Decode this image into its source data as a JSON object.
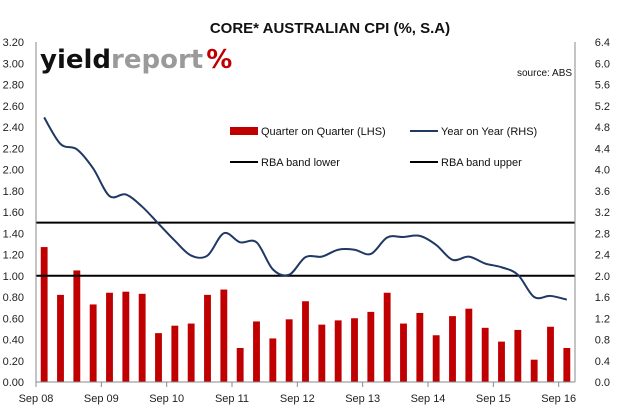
{
  "chart_data": {
    "type": "bar",
    "title": "CORE* AUSTRALIAN CPI (%, S.A)",
    "source": "source: ABS",
    "logo": {
      "text_dark": "yield",
      "text_light": "report",
      "symbol": "%"
    },
    "x_tick_labels": [
      "Sep 08",
      "Sep 09",
      "Sep 10",
      "Sep 11",
      "Sep 12",
      "Sep 13",
      "Sep 14",
      "Sep 15",
      "Sep 16"
    ],
    "left_axis": {
      "ylim": [
        0,
        3.2
      ],
      "step": 0.2,
      "tick_labels": [
        "0.00",
        "0.20",
        "0.40",
        "0.60",
        "0.80",
        "1.00",
        "1.20",
        "1.40",
        "1.60",
        "1.80",
        "2.00",
        "2.20",
        "2.40",
        "2.60",
        "2.80",
        "3.00",
        "3.20"
      ]
    },
    "right_axis": {
      "ylim": [
        0,
        6.4
      ],
      "step": 0.4,
      "tick_labels": [
        "0.0",
        "0.4",
        "0.8",
        "1.2",
        "1.6",
        "2.0",
        "2.4",
        "2.8",
        "3.2",
        "3.6",
        "4.0",
        "4.4",
        "4.8",
        "5.2",
        "5.6",
        "6.0",
        "6.4"
      ]
    },
    "legend": [
      {
        "label": "Quarter on Quarter (LHS)",
        "kind": "bar",
        "color": "#c00000"
      },
      {
        "label": "Year on Year (RHS)",
        "kind": "line",
        "color": "#1f3864"
      },
      {
        "label": "RBA band lower",
        "kind": "line",
        "color": "#000000"
      },
      {
        "label": "RBA band upper",
        "kind": "line",
        "color": "#000000"
      }
    ],
    "series": [
      {
        "name": "Quarter on Quarter (LHS)",
        "axis": "left",
        "values": [
          1.27,
          0.82,
          1.05,
          0.73,
          0.84,
          0.85,
          0.83,
          0.46,
          0.53,
          0.55,
          0.82,
          0.87,
          0.32,
          0.57,
          0.41,
          0.59,
          0.76,
          0.54,
          0.58,
          0.6,
          0.66,
          0.84,
          0.55,
          0.65,
          0.44,
          0.62,
          0.69,
          0.51,
          0.38,
          0.49,
          0.21,
          0.52,
          0.32
        ]
      },
      {
        "name": "Year on Year (RHS)",
        "axis": "right",
        "values": [
          4.98,
          4.48,
          4.38,
          4.02,
          3.5,
          3.53,
          3.3,
          2.98,
          2.66,
          2.38,
          2.38,
          2.8,
          2.63,
          2.63,
          2.12,
          2.02,
          2.35,
          2.36,
          2.49,
          2.49,
          2.41,
          2.72,
          2.73,
          2.75,
          2.58,
          2.3,
          2.36,
          2.23,
          2.16,
          2.02,
          1.6,
          1.62,
          1.55
        ]
      }
    ],
    "reference_lines": [
      {
        "name": "RBA band lower",
        "axis": "right",
        "value": 2.0
      },
      {
        "name": "RBA band upper",
        "axis": "right",
        "value": 3.0
      }
    ],
    "colors": {
      "bar": "#c00000",
      "line": "#1f3864",
      "band": "#000000"
    },
    "grid": false
  }
}
